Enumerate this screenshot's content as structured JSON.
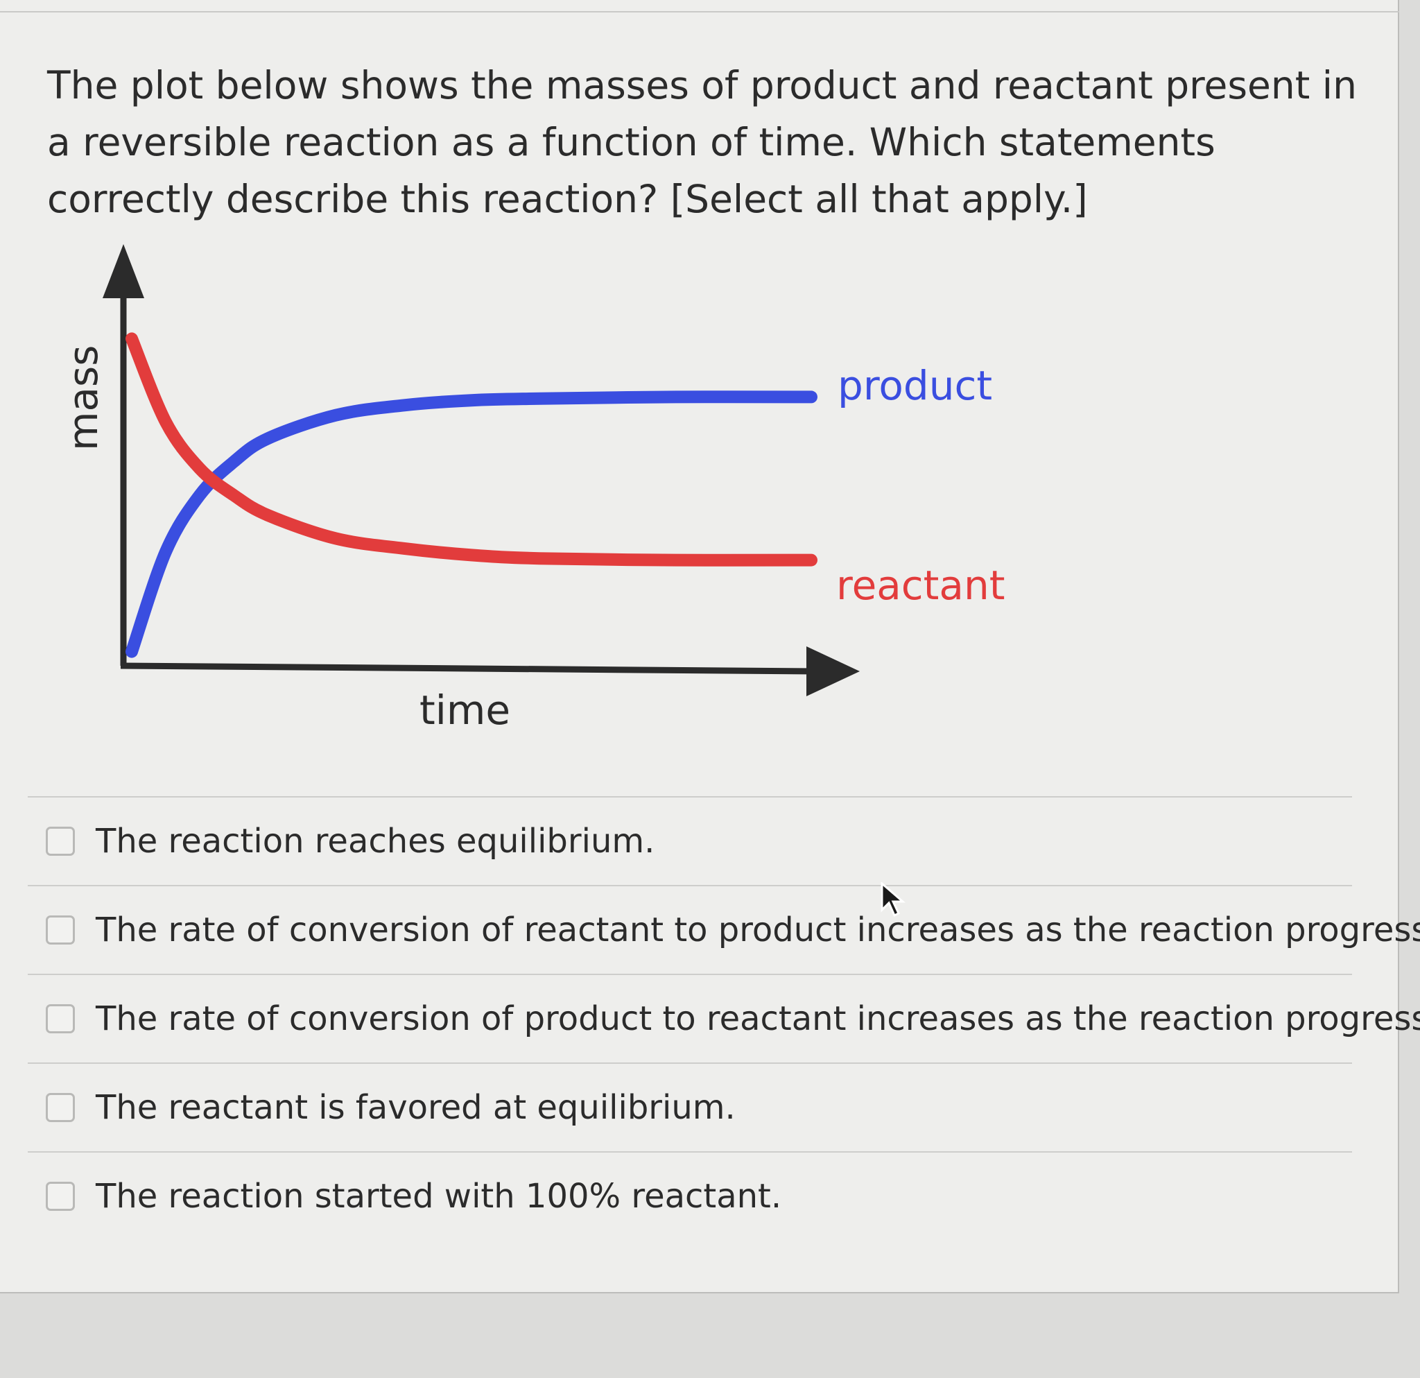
{
  "question": {
    "prompt": "The plot below shows the masses of product and reactant present in a reversible reaction as a function of time. Which statements correctly describe this reaction? [Select all that apply.]"
  },
  "chart_data": {
    "type": "line",
    "xlabel": "time",
    "ylabel": "mass",
    "series": [
      {
        "name": "product",
        "color": "#3a4ee0",
        "points": [
          [
            0,
            0.03
          ],
          [
            0.05,
            0.33
          ],
          [
            0.1,
            0.5
          ],
          [
            0.15,
            0.6
          ],
          [
            0.2,
            0.67
          ],
          [
            0.3,
            0.74
          ],
          [
            0.4,
            0.77
          ],
          [
            0.5,
            0.785
          ],
          [
            0.6,
            0.79
          ],
          [
            0.8,
            0.795
          ],
          [
            1.0,
            0.795
          ]
        ]
      },
      {
        "name": "reactant",
        "color": "#e23c3c",
        "points": [
          [
            0,
            0.97
          ],
          [
            0.05,
            0.72
          ],
          [
            0.1,
            0.58
          ],
          [
            0.15,
            0.5
          ],
          [
            0.2,
            0.44
          ],
          [
            0.3,
            0.37
          ],
          [
            0.4,
            0.34
          ],
          [
            0.5,
            0.32
          ],
          [
            0.6,
            0.31
          ],
          [
            0.8,
            0.305
          ],
          [
            1.0,
            0.305
          ]
        ]
      }
    ],
    "xlim": [
      0,
      1
    ],
    "ylim": [
      0,
      1
    ],
    "ticks": "none",
    "grid": false,
    "legend": "inline labels at right end of curves"
  },
  "choices": [
    {
      "label": "The reaction reaches equilibrium.",
      "checked": false
    },
    {
      "label": "The rate of conversion of reactant to product increases as the reaction progresses.",
      "checked": false
    },
    {
      "label": "The rate of conversion of product to reactant increases as the reaction progresses.",
      "checked": false
    },
    {
      "label": "The reactant is favored at equilibrium.",
      "checked": false
    },
    {
      "label": "The reaction started with 100% reactant.",
      "checked": false
    }
  ]
}
